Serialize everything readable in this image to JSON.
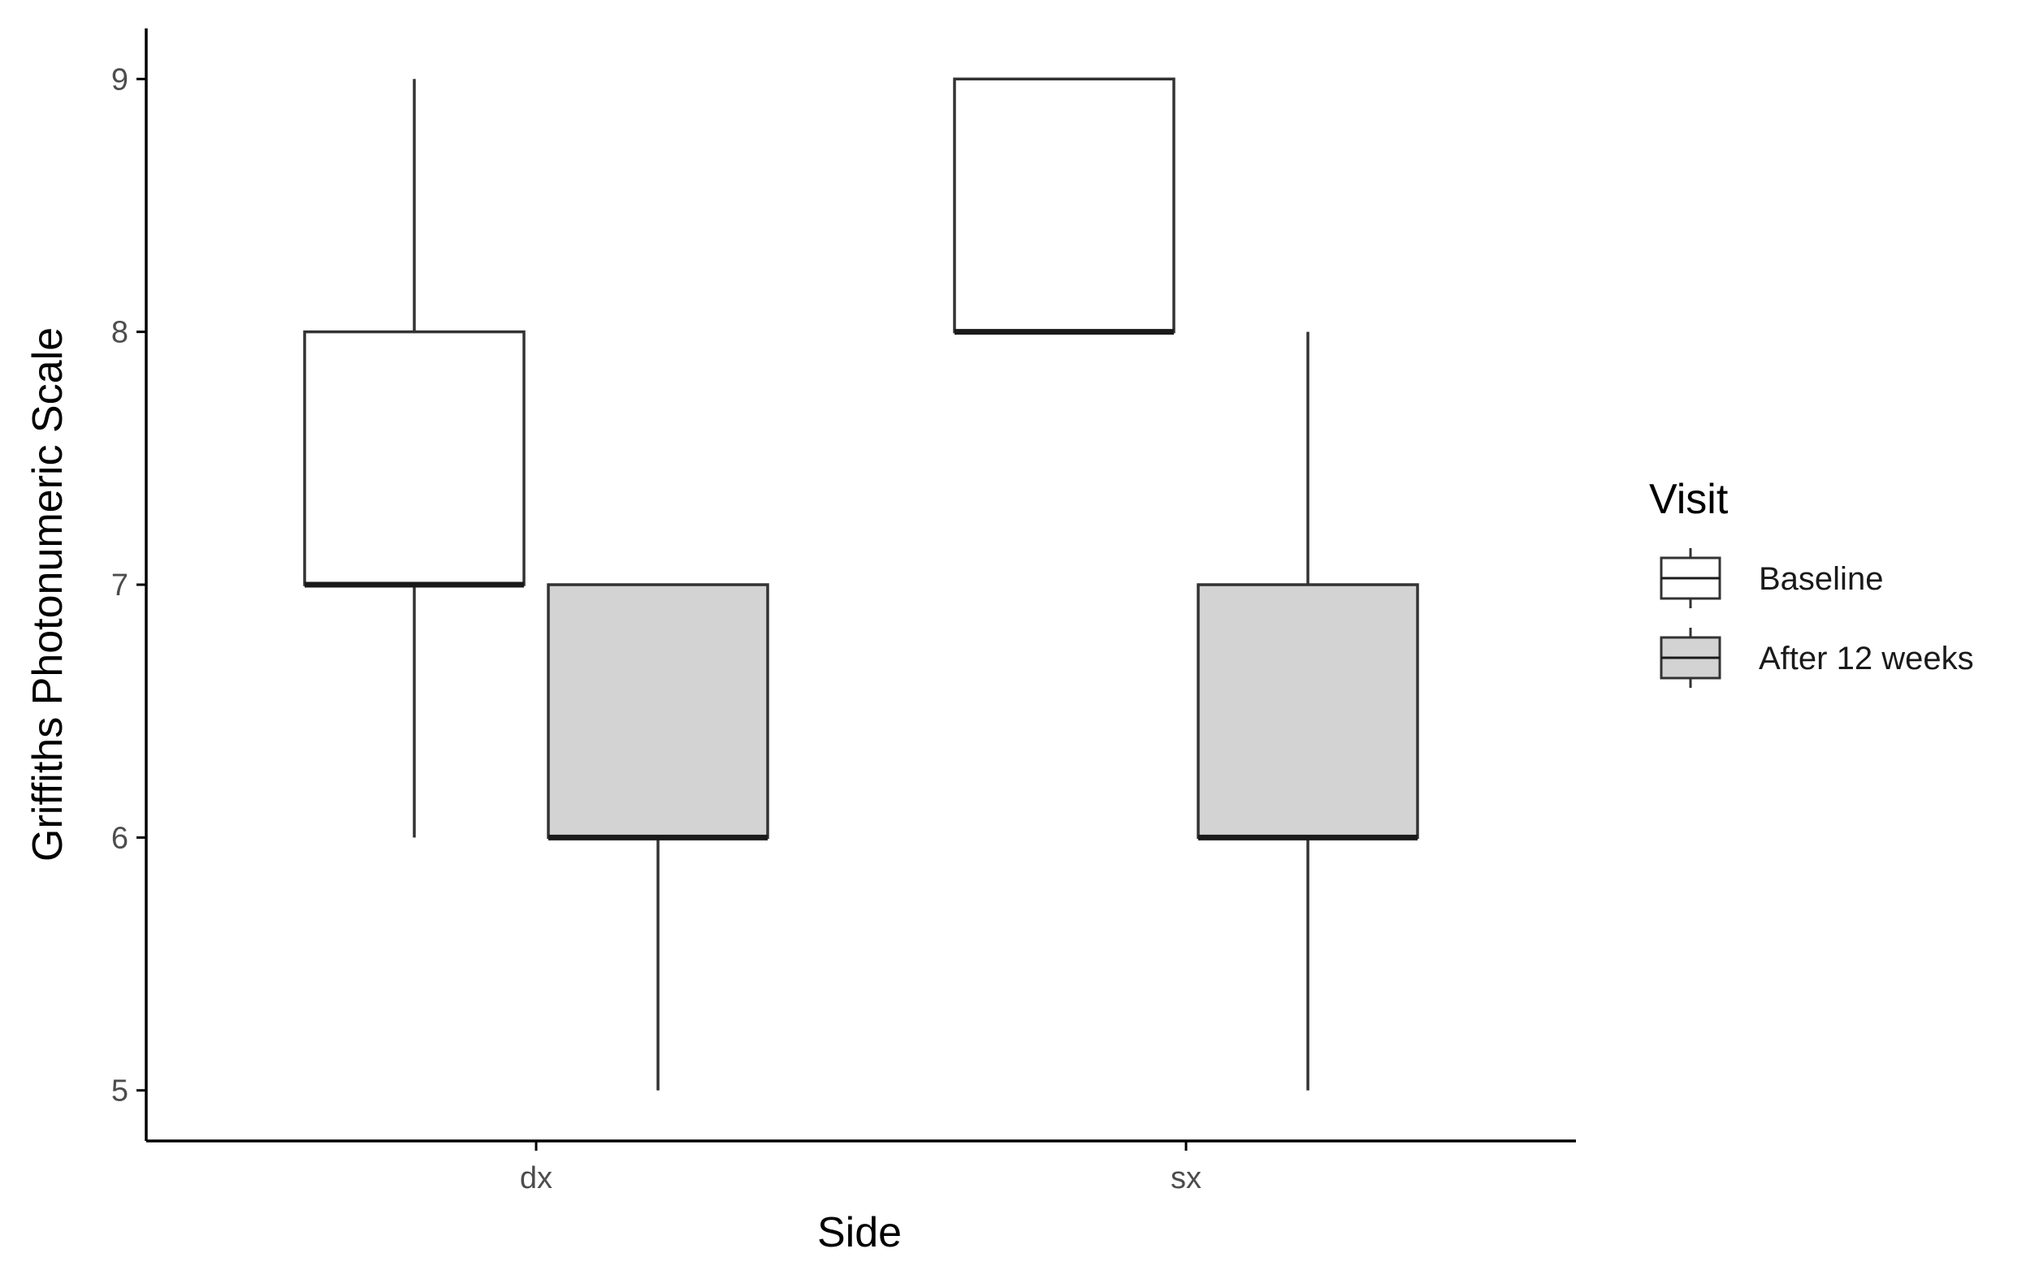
{
  "chart_data": {
    "type": "boxplot",
    "xlabel": "Side",
    "ylabel": "Griffiths Photonumeric Scale",
    "categories": [
      "dx",
      "sx"
    ],
    "ylim": [
      4.8,
      9.2
    ],
    "yticks": [
      5,
      6,
      7,
      8,
      9
    ],
    "grid": false,
    "legend": {
      "title": "Visit",
      "placement": "right"
    },
    "series": [
      {
        "name": "Baseline",
        "fill": "#ffffff",
        "boxes": [
          {
            "category": "dx",
            "whisker_low": 6,
            "q1": 7,
            "median": 7,
            "q3": 8,
            "whisker_high": 9
          },
          {
            "category": "sx",
            "whisker_low": 8,
            "q1": 8,
            "median": 8,
            "q3": 9,
            "whisker_high": 9
          }
        ]
      },
      {
        "name": "After 12 weeks",
        "fill": "#d3d3d3",
        "boxes": [
          {
            "category": "dx",
            "whisker_low": 5,
            "q1": 6,
            "median": 6,
            "q3": 7,
            "whisker_high": 7
          },
          {
            "category": "sx",
            "whisker_low": 5,
            "q1": 6,
            "median": 6,
            "q3": 7,
            "whisker_high": 8
          }
        ]
      }
    ],
    "colors": {
      "stroke": "#333333",
      "axis": "#000000"
    }
  }
}
